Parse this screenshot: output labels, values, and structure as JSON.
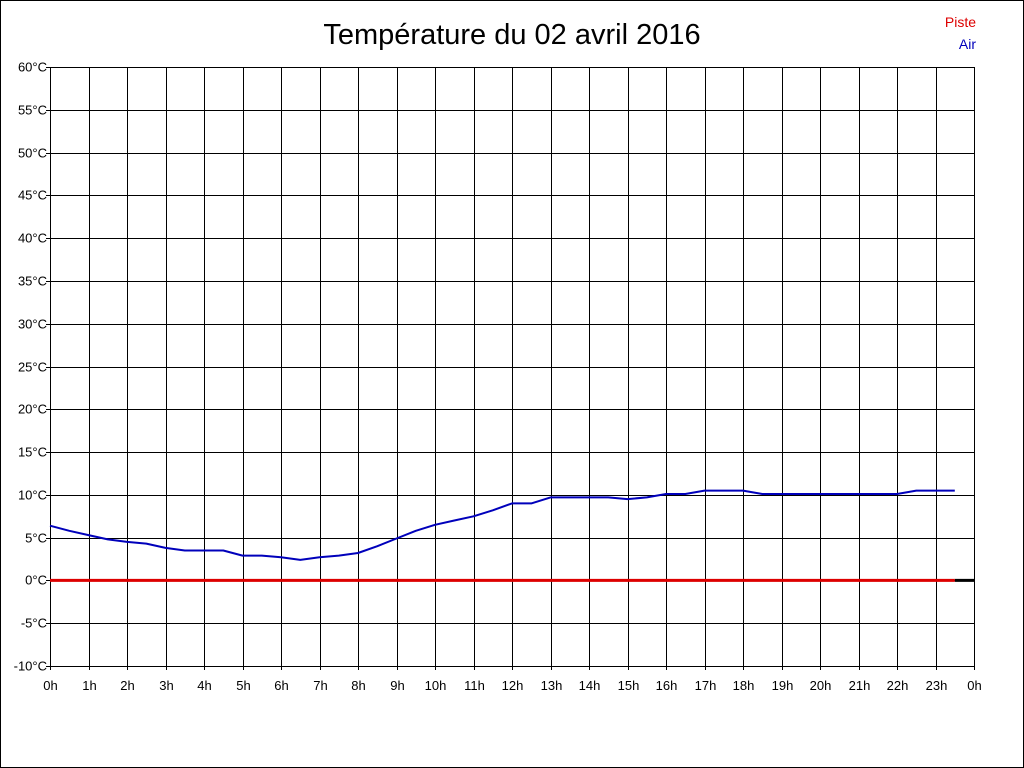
{
  "chart_data": {
    "type": "line",
    "title": "Température du 02 avril 2016",
    "legend_placement": "top-right",
    "grid": true,
    "xlabel": "",
    "ylabel": "",
    "x_ticks": [
      "0h",
      "1h",
      "2h",
      "3h",
      "4h",
      "5h",
      "6h",
      "7h",
      "8h",
      "9h",
      "10h",
      "11h",
      "12h",
      "13h",
      "14h",
      "15h",
      "16h",
      "17h",
      "18h",
      "19h",
      "20h",
      "21h",
      "22h",
      "23h",
      "0h"
    ],
    "y_ticks": [
      "-10°C",
      "-5°C",
      "0°C",
      "5°C",
      "10°C",
      "15°C",
      "20°C",
      "25°C",
      "30°C",
      "35°C",
      "40°C",
      "45°C",
      "50°C",
      "55°C",
      "60°C"
    ],
    "xlim": [
      0,
      24
    ],
    "ylim": [
      -10,
      60
    ],
    "series": [
      {
        "name": "Piste",
        "color": "#dd0000",
        "x": [
          0,
          23.5
        ],
        "y": [
          0,
          0
        ]
      },
      {
        "name": "Air",
        "color": "#0000bb",
        "x": [
          0,
          0.5,
          1,
          1.5,
          2,
          2.5,
          3,
          3.5,
          4,
          4.5,
          5,
          5.5,
          6,
          6.5,
          7,
          7.5,
          8,
          8.5,
          9,
          9.5,
          10,
          10.5,
          11,
          11.5,
          12,
          12.5,
          13,
          13.5,
          14,
          14.5,
          15,
          15.5,
          16,
          16.5,
          17,
          17.5,
          18,
          18.5,
          19,
          19.5,
          20,
          20.5,
          21,
          21.5,
          22,
          22.5,
          23,
          23.5
        ],
        "y": [
          6.4,
          5.8,
          5.3,
          4.8,
          4.5,
          4.3,
          3.8,
          3.5,
          3.5,
          3.5,
          2.9,
          2.9,
          2.7,
          2.4,
          2.7,
          2.9,
          3.2,
          4.0,
          4.9,
          5.8,
          6.5,
          7.0,
          7.5,
          8.2,
          9.0,
          9.0,
          9.7,
          9.7,
          9.7,
          9.7,
          9.5,
          9.7,
          10.1,
          10.1,
          10.5,
          10.5,
          10.5,
          10.1,
          10.1,
          10.1,
          10.1,
          10.1,
          10.1,
          10.1,
          10.1,
          10.5,
          10.5,
          10.5
        ]
      }
    ]
  }
}
